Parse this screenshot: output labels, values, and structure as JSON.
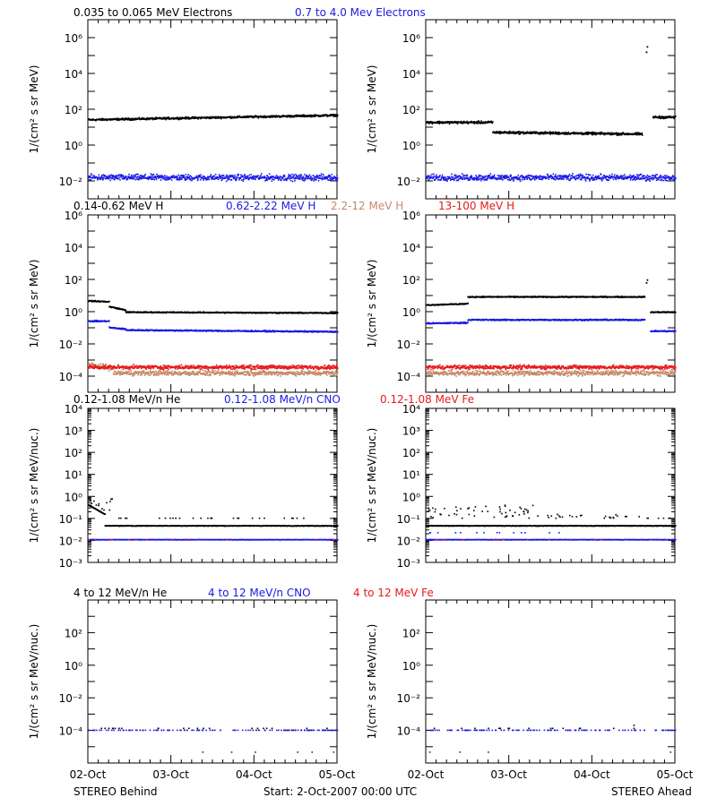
{
  "colors": {
    "black": "#000000",
    "blue": "#1a1ae6",
    "tan": "#c48a6a",
    "red": "#e61a1a"
  },
  "rows": [
    {
      "titles": [
        {
          "text": "0.035 to 0.065 MeV Electrons",
          "color": "black"
        },
        {
          "text": "0.7 to 4.0 Mev Electrons",
          "color": "blue"
        }
      ],
      "ylabel": "1/(cm² s sr MeV)"
    },
    {
      "titles": [
        {
          "text": "0.14-0.62 MeV H",
          "color": "black"
        },
        {
          "text": "0.62-2.22 MeV H",
          "color": "blue"
        },
        {
          "text": "2.2-12 MeV H",
          "color": "tan"
        },
        {
          "text": "13-100 MeV H",
          "color": "red"
        }
      ],
      "ylabel": "1/(cm² s sr MeV)"
    },
    {
      "titles": [
        {
          "text": "0.12-1.08 MeV/n He",
          "color": "black"
        },
        {
          "text": "0.12-1.08 MeV/n CNO",
          "color": "blue"
        },
        {
          "text": "0.12-1.08 MeV Fe",
          "color": "red"
        }
      ],
      "ylabel": "1/(cm² s sr MeV/nuc.)"
    },
    {
      "titles": [
        {
          "text": "4 to 12 MeV/n He",
          "color": "black"
        },
        {
          "text": "4 to 12 MeV/n CNO",
          "color": "blue"
        },
        {
          "text": "4 to 12 MeV Fe",
          "color": "red"
        }
      ],
      "ylabel": "1/(cm² s sr MeV/nuc.)"
    }
  ],
  "x_tick_labels": [
    "02-Oct",
    "03-Oct",
    "04-Oct",
    "05-Oct"
  ],
  "footer": {
    "left": "STEREO Behind",
    "center": "Start:  2-Oct-2007 00:00 UTC",
    "right": "STEREO Ahead"
  },
  "chart_data": [
    {
      "id": "behind-electrons",
      "type": "scatter",
      "yscale": "log",
      "ylim": [
        0.001,
        10000000
      ],
      "xlim": [
        0,
        3
      ],
      "yticks": [
        {
          "v": 0.01,
          "label": "10⁻²"
        },
        {
          "v": 1,
          "label": "10⁰"
        },
        {
          "v": 100,
          "label": "10²"
        },
        {
          "v": 10000,
          "label": "10⁴"
        },
        {
          "v": 1000000,
          "label": "10⁶"
        }
      ],
      "series": [
        {
          "name": "0.035 to 0.065 MeV Electrons",
          "color": "black",
          "segments": [
            [
              0,
              3,
              25,
              45
            ]
          ],
          "jitter": 0.08
        },
        {
          "name": "0.7 to 4.0 Mev Electrons",
          "color": "blue",
          "segments": [
            [
              0,
              3,
              0.015,
              0.015
            ]
          ],
          "jitter": 0.25
        }
      ]
    },
    {
      "id": "ahead-electrons",
      "type": "scatter",
      "yscale": "log",
      "ylim": [
        0.001,
        10000000
      ],
      "xlim": [
        0,
        3
      ],
      "yticks": [
        {
          "v": 0.01,
          "label": "10⁻²"
        },
        {
          "v": 1,
          "label": "10⁰"
        },
        {
          "v": 100,
          "label": "10²"
        },
        {
          "v": 10000,
          "label": "10⁴"
        },
        {
          "v": 1000000,
          "label": "10⁶"
        }
      ],
      "series": [
        {
          "name": "0.035 to 0.065 MeV Electrons",
          "color": "black",
          "segments": [
            [
              0,
              0.8,
              18,
              18
            ],
            [
              0.8,
              2.6,
              5,
              4
            ],
            [
              2.73,
              3,
              35,
              35
            ]
          ],
          "jitter": 0.1,
          "spikes": [
            {
              "x": 2.65,
              "y": 150000
            },
            {
              "x": 2.66,
              "y": 300000
            }
          ]
        },
        {
          "name": "0.7 to 4.0 Mev Electrons",
          "color": "blue",
          "segments": [
            [
              0,
              3,
              0.015,
              0.015
            ]
          ],
          "jitter": 0.25
        }
      ]
    },
    {
      "id": "behind-protons",
      "type": "scatter",
      "yscale": "log",
      "ylim": [
        1e-05,
        1000000
      ],
      "xlim": [
        0,
        3
      ],
      "yticks": [
        {
          "v": 0.0001,
          "label": "10⁻⁴"
        },
        {
          "v": 0.01,
          "label": "10⁻²"
        },
        {
          "v": 1,
          "label": "10⁰"
        },
        {
          "v": 100,
          "label": "10²"
        },
        {
          "v": 10000,
          "label": "10⁴"
        },
        {
          "v": 1000000,
          "label": "10⁶"
        }
      ],
      "series": [
        {
          "name": "0.14-0.62 MeV H",
          "color": "black",
          "segments": [
            [
              0,
              0.25,
              4.5,
              4
            ],
            [
              0.25,
              0.45,
              2,
              1.2
            ],
            [
              0.45,
              3,
              0.9,
              0.8
            ]
          ],
          "jitter": 0.05
        },
        {
          "name": "0.62-2.22 MeV H",
          "color": "blue",
          "segments": [
            [
              0,
              0.25,
              0.25,
              0.25
            ],
            [
              0.25,
              0.45,
              0.1,
              0.08
            ],
            [
              0.45,
              3,
              0.07,
              0.055
            ]
          ],
          "jitter": 0.06
        },
        {
          "name": "2.2-12 MeV H",
          "color": "tan",
          "segments": [
            [
              0,
              0.3,
              0.0005,
              0.0003
            ],
            [
              0.3,
              3,
              0.00015,
              0.00015
            ]
          ],
          "jitter": 0.22
        },
        {
          "name": "13-100 MeV H",
          "color": "red",
          "segments": [
            [
              0,
              3,
              0.00035,
              0.00035
            ]
          ],
          "jitter": 0.18
        }
      ]
    },
    {
      "id": "ahead-protons",
      "type": "scatter",
      "yscale": "log",
      "ylim": [
        1e-05,
        1000000
      ],
      "xlim": [
        0,
        3
      ],
      "yticks": [
        {
          "v": 0.0001,
          "label": "10⁻⁴"
        },
        {
          "v": 0.01,
          "label": "10⁻²"
        },
        {
          "v": 1,
          "label": "10⁰"
        },
        {
          "v": 100,
          "label": "10²"
        },
        {
          "v": 10000,
          "label": "10⁴"
        },
        {
          "v": 1000000,
          "label": "10⁶"
        }
      ],
      "series": [
        {
          "name": "0.14-0.62 MeV H",
          "color": "black",
          "segments": [
            [
              0,
              0.5,
              2.5,
              3
            ],
            [
              0.5,
              2.63,
              8,
              8
            ],
            [
              2.7,
              3,
              0.9,
              0.9
            ]
          ],
          "jitter": 0.05,
          "spikes": [
            {
              "x": 2.65,
              "y": 60
            },
            {
              "x": 2.66,
              "y": 90
            }
          ]
        },
        {
          "name": "0.62-2.22 MeV H",
          "color": "blue",
          "segments": [
            [
              0,
              0.5,
              0.18,
              0.2
            ],
            [
              0.5,
              2.63,
              0.3,
              0.3
            ],
            [
              2.7,
              3,
              0.06,
              0.06
            ]
          ],
          "jitter": 0.06
        },
        {
          "name": "2.2-12 MeV H",
          "color": "tan",
          "segments": [
            [
              0,
              3,
              0.00015,
              0.00015
            ]
          ],
          "jitter": 0.22
        },
        {
          "name": "13-100 MeV H",
          "color": "red",
          "segments": [
            [
              0,
              3,
              0.00035,
              0.00035
            ]
          ],
          "jitter": 0.18
        }
      ]
    },
    {
      "id": "behind-heavy-low",
      "type": "scatter",
      "yscale": "log",
      "ylim": [
        0.001,
        10000
      ],
      "xlim": [
        0,
        3
      ],
      "yticks": [
        {
          "v": 0.001,
          "label": "10⁻³"
        },
        {
          "v": 0.01,
          "label": "10⁻²"
        },
        {
          "v": 0.1,
          "label": "10⁻¹"
        },
        {
          "v": 1,
          "label": "10⁰"
        },
        {
          "v": 10,
          "label": "10¹"
        },
        {
          "v": 100,
          "label": "10²"
        },
        {
          "v": 1000,
          "label": "10³"
        },
        {
          "v": 10000,
          "label": "10⁴"
        }
      ],
      "series": [
        {
          "name": "0.12-1.08 MeV/n He",
          "color": "black",
          "segments": [
            [
              0,
              0.2,
              0.4,
              0.15
            ],
            [
              0.2,
              3,
              0.045,
              0.045
            ]
          ],
          "jitter": 0.02,
          "sparse": [
            [
              0,
              0.3,
              0.2,
              0.8,
              14
            ],
            [
              0.3,
              3,
              0.1,
              0.1,
              28
            ]
          ]
        },
        {
          "name": "0.12-1.08 MeV/n CNO",
          "color": "blue",
          "segments": [
            [
              0,
              3,
              0.0105,
              0.0105
            ]
          ],
          "jitter": 0.01
        },
        {
          "name": "0.12-1.08 MeV Fe",
          "color": "red",
          "segments": [],
          "sparse": [
            [
              0,
              3,
              0.0105,
              0.0105,
              14
            ]
          ]
        }
      ]
    },
    {
      "id": "ahead-heavy-low",
      "type": "scatter",
      "yscale": "log",
      "ylim": [
        0.001,
        10000
      ],
      "xlim": [
        0,
        3
      ],
      "yticks": [
        {
          "v": 0.001,
          "label": "10⁻³"
        },
        {
          "v": 0.01,
          "label": "10⁻²"
        },
        {
          "v": 0.1,
          "label": "10⁻¹"
        },
        {
          "v": 1,
          "label": "10⁰"
        },
        {
          "v": 10,
          "label": "10¹"
        },
        {
          "v": 100,
          "label": "10²"
        },
        {
          "v": 1000,
          "label": "10³"
        },
        {
          "v": 10000,
          "label": "10⁴"
        }
      ],
      "series": [
        {
          "name": "0.12-1.08 MeV/n He",
          "color": "black",
          "segments": [
            [
              0,
              3,
              0.045,
              0.045
            ]
          ],
          "jitter": 0.02,
          "sparse": [
            [
              0,
              1.4,
              0.1,
              0.4,
              55
            ],
            [
              1.4,
              2.6,
              0.1,
              0.15,
              25
            ],
            [
              2.6,
              3,
              0.1,
              0.1,
              6
            ]
          ]
        },
        {
          "name": "0.12-1.08 MeV/n CNO",
          "color": "blue",
          "segments": [
            [
              0,
              3,
              0.0105,
              0.0105
            ]
          ],
          "jitter": 0.01,
          "sparse": [
            [
              0,
              1.8,
              0.022,
              0.022,
              14
            ]
          ]
        },
        {
          "name": "0.12-1.08 MeV Fe",
          "color": "red",
          "segments": [],
          "sparse": [
            [
              0,
              3,
              0.0105,
              0.0105,
              14
            ]
          ]
        }
      ]
    },
    {
      "id": "behind-heavy-high",
      "type": "scatter",
      "yscale": "log",
      "ylim": [
        1e-06,
        10000
      ],
      "xlim": [
        0,
        3
      ],
      "yticks": [
        {
          "v": 0.0001,
          "label": "10⁻⁴"
        },
        {
          "v": 0.01,
          "label": "10⁻²"
        },
        {
          "v": 1,
          "label": "10⁰"
        },
        {
          "v": 100,
          "label": "10²"
        }
      ],
      "series": [
        {
          "name": "4 to 12 MeV/n He",
          "color": "black",
          "segments": [],
          "sparse": [
            [
              0,
              3,
              0.00013,
              0.00013,
              22
            ],
            [
              0,
              3,
              0.0001,
              0.0001,
              10
            ]
          ]
        },
        {
          "name": "4 to 12 MeV/n CNO",
          "color": "blue",
          "segments": [],
          "sparse": [
            [
              0,
              3,
              0.0001,
              0.0001,
              120
            ],
            [
              0,
              3,
              4.5e-06,
              4.5e-06,
              6
            ]
          ]
        },
        {
          "name": "4 to 12 MeV Fe",
          "color": "red",
          "segments": []
        }
      ]
    },
    {
      "id": "ahead-heavy-high",
      "type": "scatter",
      "yscale": "log",
      "ylim": [
        1e-06,
        10000
      ],
      "xlim": [
        0,
        3
      ],
      "yticks": [
        {
          "v": 0.0001,
          "label": "10⁻⁴"
        },
        {
          "v": 0.01,
          "label": "10⁻²"
        },
        {
          "v": 1,
          "label": "10⁰"
        },
        {
          "v": 100,
          "label": "10²"
        }
      ],
      "series": [
        {
          "name": "4 to 12 MeV/n He",
          "color": "black",
          "segments": [],
          "sparse": [
            [
              0,
              3,
              0.00013,
              0.00013,
              16
            ],
            [
              2.5,
              2.5,
              0.0002,
              0.0002,
              1
            ]
          ]
        },
        {
          "name": "4 to 12 MeV/n CNO",
          "color": "blue",
          "segments": [],
          "sparse": [
            [
              0,
              3,
              0.0001,
              0.0001,
              120
            ],
            [
              0,
              3,
              4.5e-06,
              4.5e-06,
              4
            ]
          ]
        },
        {
          "name": "4 to 12 MeV Fe",
          "color": "red",
          "segments": []
        }
      ]
    }
  ]
}
